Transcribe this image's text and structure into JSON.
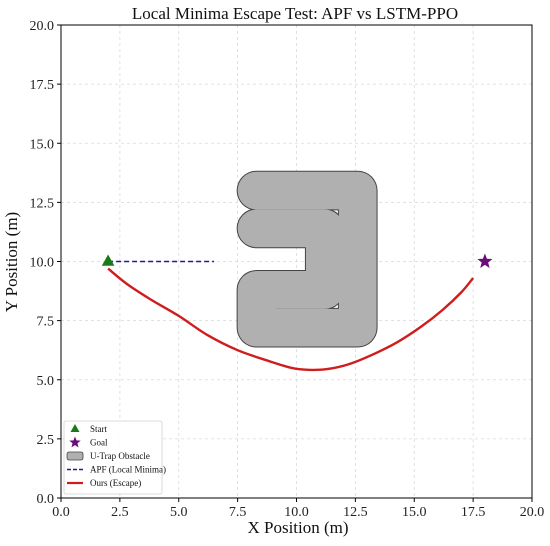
{
  "chart_data": {
    "type": "line",
    "title": "Local Minima Escape Test: APF vs LSTM-PPO",
    "xlabel": "X Position (m)",
    "ylabel": "Y Position (m)",
    "xlim": [
      0,
      20
    ],
    "ylim": [
      0,
      20
    ],
    "xticks": [
      "0.0",
      "2.5",
      "5.0",
      "7.5",
      "10.0",
      "12.5",
      "15.0",
      "17.5",
      "20.0"
    ],
    "yticks": [
      "0.0",
      "2.5",
      "5.0",
      "7.5",
      "10.0",
      "12.5",
      "15.0",
      "17.5",
      "20.0"
    ],
    "grid": true,
    "legend_position": "bottom-left",
    "start": {
      "name": "Start",
      "x": 2.0,
      "y": 10.0,
      "color": "#1a7a1a"
    },
    "goal": {
      "name": "Goal",
      "x": 18.0,
      "y": 10.0,
      "color": "#6a0f7a"
    },
    "obstacle": {
      "name": "U-Trap Obstacle",
      "color": "#b0b0b0",
      "path": [
        [
          8.3,
          13.0
        ],
        [
          12.6,
          13.0
        ],
        [
          12.6,
          7.2
        ],
        [
          8.3,
          7.2
        ],
        [
          8.3,
          8.8
        ],
        [
          11.2,
          8.8
        ],
        [
          11.2,
          11.4
        ],
        [
          8.3,
          11.4
        ]
      ]
    },
    "series": [
      {
        "name": "APF (Local Minima)",
        "color": "#1f1f8a",
        "style": "dashed",
        "x": [
          2.0,
          6.5
        ],
        "y": [
          10.0,
          10.0
        ]
      },
      {
        "name": "Ours (Escape)",
        "color": "#d01c1c",
        "style": "solid",
        "x": [
          2.0,
          2.8,
          3.8,
          5.0,
          6.2,
          7.5,
          8.8,
          9.8,
          10.5,
          11.3,
          12.2,
          13.2,
          14.3,
          15.3,
          16.2,
          17.0,
          17.5
        ],
        "y": [
          9.7,
          9.05,
          8.4,
          7.7,
          6.9,
          6.25,
          5.8,
          5.5,
          5.42,
          5.45,
          5.65,
          6.05,
          6.6,
          7.25,
          7.95,
          8.7,
          9.3
        ]
      }
    ]
  }
}
